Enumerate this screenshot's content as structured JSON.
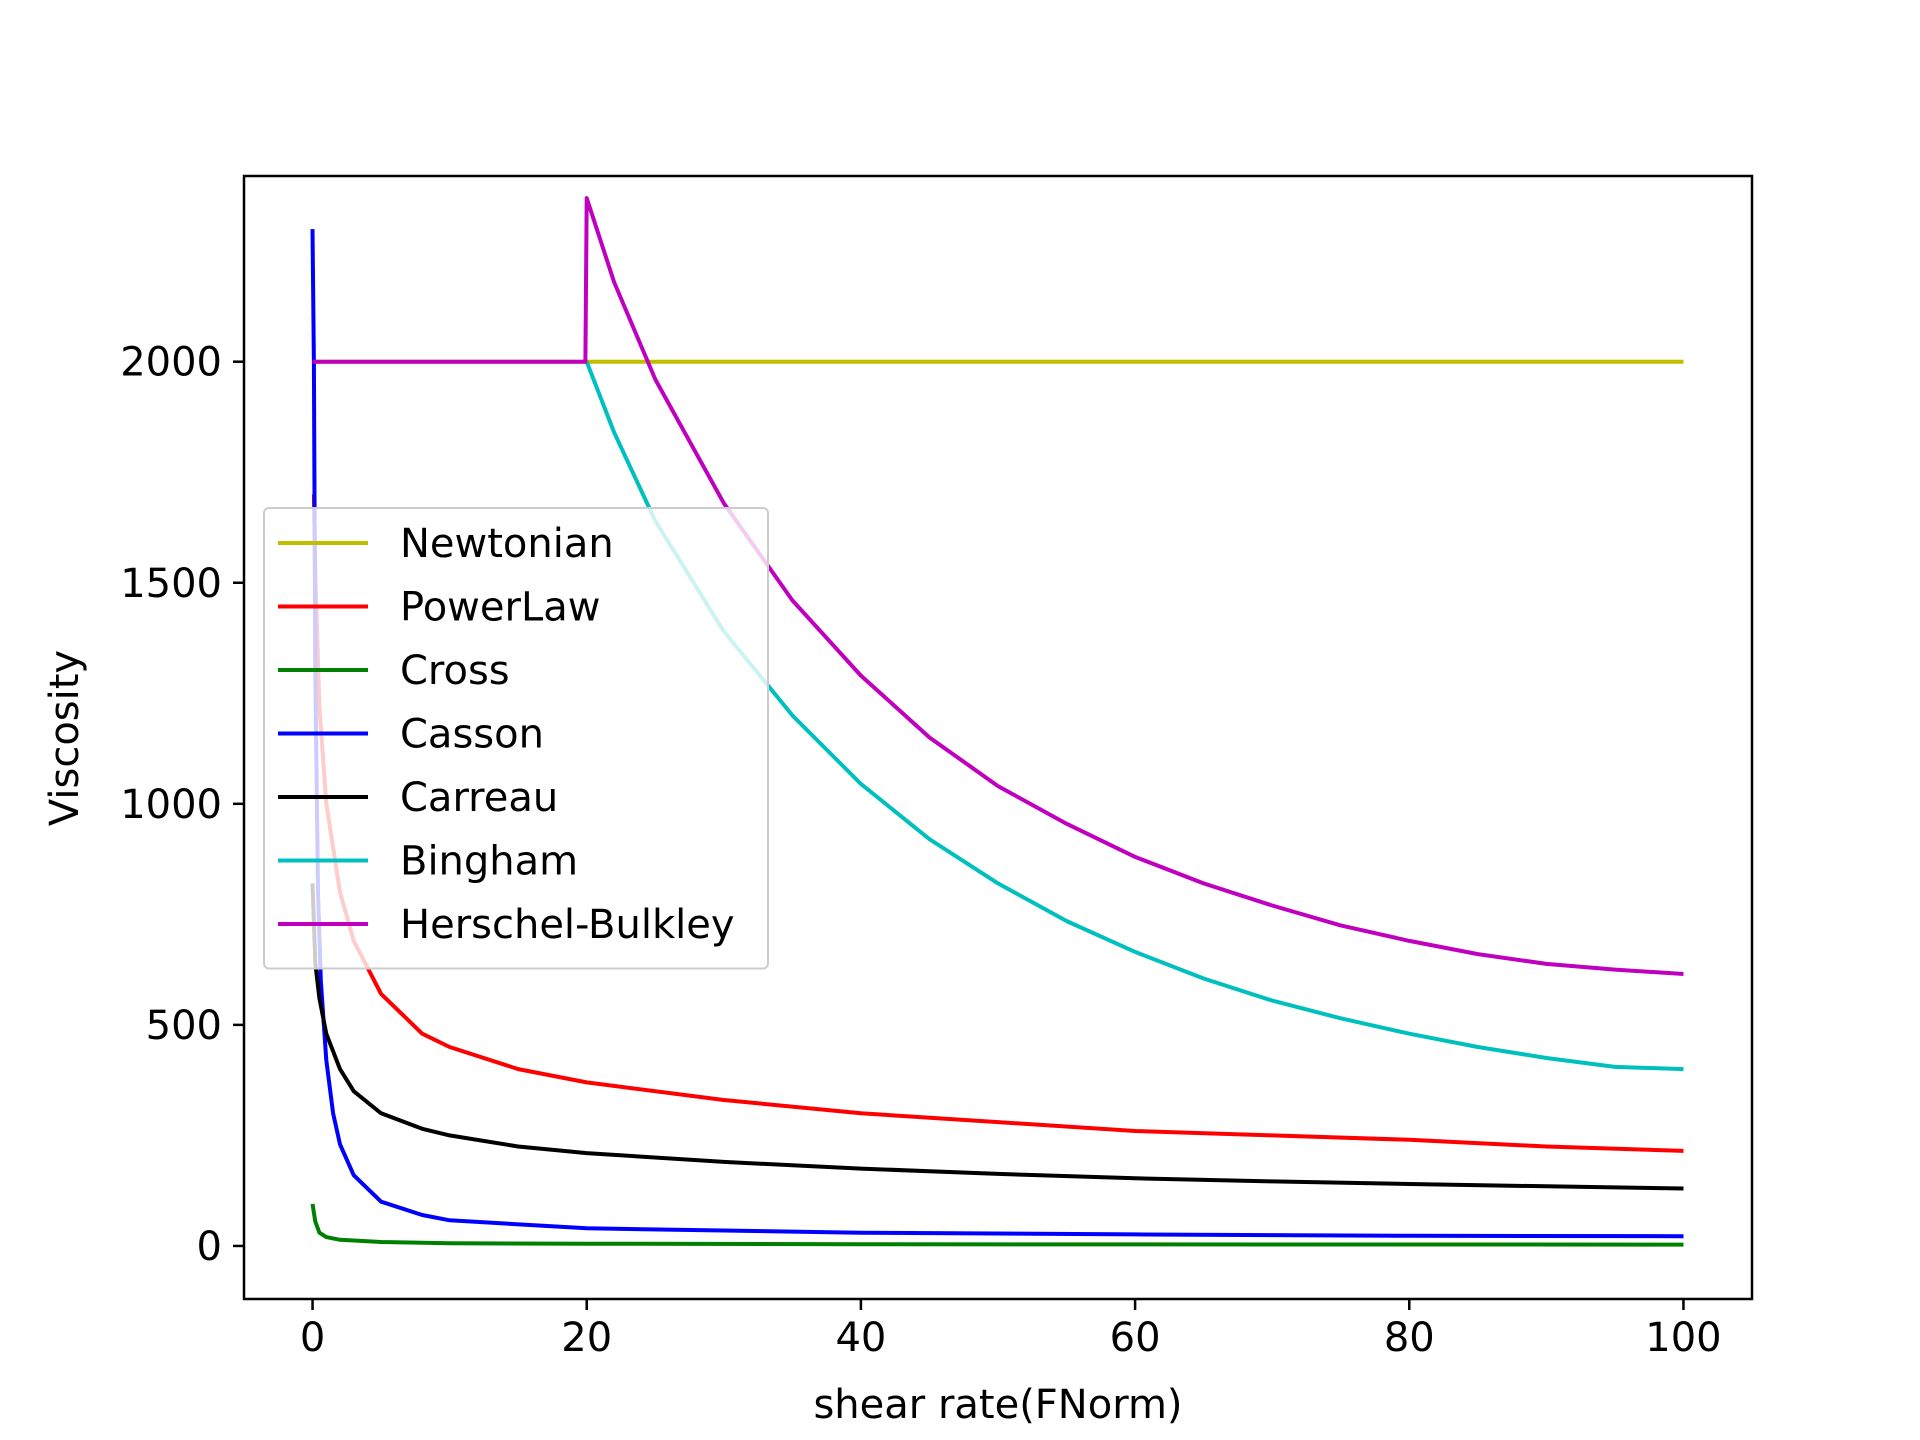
{
  "chart_data": {
    "type": "line",
    "title": "",
    "xlabel": "shear rate(FNorm)",
    "ylabel": "Viscosity",
    "xlim": [
      -5,
      105
    ],
    "ylim": [
      -120,
      2420
    ],
    "xticks": [
      0,
      20,
      40,
      60,
      80,
      100
    ],
    "yticks": [
      0,
      500,
      1000,
      1500,
      2000
    ],
    "grid": false,
    "legend_position": "center-left",
    "series": [
      {
        "name": "Newtonian",
        "color": "#bfbf00",
        "x": [
          0,
          100
        ],
        "y": [
          2000,
          2000
        ]
      },
      {
        "name": "PowerLaw",
        "color": "#ff0000",
        "x": [
          0.1,
          0.2,
          0.5,
          1,
          2,
          3,
          5,
          8,
          10,
          15,
          20,
          30,
          40,
          50,
          60,
          70,
          80,
          90,
          100
        ],
        "y": [
          1700,
          1520,
          1220,
          1000,
          800,
          690,
          570,
          480,
          450,
          400,
          370,
          330,
          300,
          280,
          260,
          250,
          240,
          225,
          215
        ]
      },
      {
        "name": "Cross",
        "color": "#008000",
        "x": [
          0,
          0.2,
          0.5,
          1,
          2,
          5,
          10,
          20,
          40,
          60,
          80,
          100
        ],
        "y": [
          95,
          55,
          30,
          20,
          14,
          9,
          6,
          5,
          4,
          3.5,
          3.2,
          3
        ]
      },
      {
        "name": "Casson",
        "color": "#0000ff",
        "x": [
          0,
          0.1,
          0.2,
          0.4,
          0.6,
          1,
          1.5,
          2,
          3,
          5,
          8,
          10,
          20,
          40,
          60,
          80,
          100
        ],
        "y": [
          2300,
          2000,
          1300,
          800,
          600,
          420,
          300,
          230,
          160,
          100,
          70,
          58,
          40,
          30,
          26,
          23,
          22
        ]
      },
      {
        "name": "Carreau",
        "color": "#000000",
        "x": [
          0,
          0.2,
          0.5,
          1,
          2,
          3,
          5,
          8,
          10,
          15,
          20,
          30,
          40,
          50,
          60,
          70,
          80,
          90,
          100
        ],
        "y": [
          820,
          640,
          560,
          480,
          400,
          350,
          300,
          265,
          250,
          225,
          210,
          190,
          175,
          163,
          153,
          146,
          140,
          135,
          130
        ]
      },
      {
        "name": "Bingham",
        "color": "#00bfbf",
        "x": [
          20,
          22,
          25,
          30,
          35,
          40,
          45,
          50,
          55,
          60,
          65,
          70,
          75,
          80,
          85,
          90,
          95,
          100
        ],
        "y": [
          2000,
          1840,
          1640,
          1390,
          1200,
          1045,
          920,
          820,
          735,
          665,
          605,
          555,
          515,
          480,
          450,
          425,
          405,
          400
        ]
      },
      {
        "name": "Herschel-Bulkley",
        "color": "#bf00bf",
        "x": [
          0,
          19.9,
          20,
          22,
          25,
          30,
          35,
          40,
          45,
          50,
          55,
          60,
          65,
          70,
          75,
          80,
          85,
          90,
          95,
          100
        ],
        "y": [
          2000,
          2000,
          2370,
          2180,
          1960,
          1680,
          1460,
          1290,
          1150,
          1040,
          955,
          880,
          820,
          770,
          725,
          690,
          660,
          638,
          625,
          615
        ]
      }
    ]
  }
}
